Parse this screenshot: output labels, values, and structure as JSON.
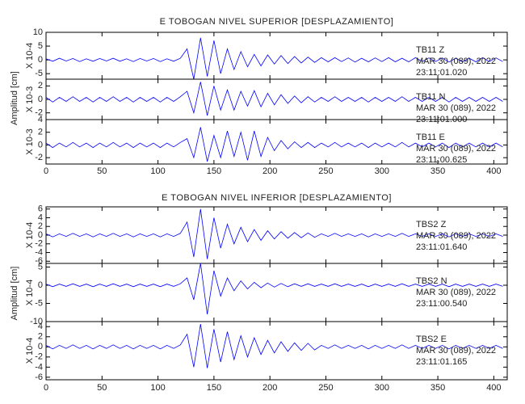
{
  "chart_data": [
    {
      "type": "line",
      "title": "E TOBOGAN NIVEL SUPERIOR [DESPLAZAMIENTO]",
      "y_label": "Amplitud [cm]",
      "color": "#0000ff",
      "x": [
        0,
        6,
        12,
        18,
        24,
        30,
        36,
        42,
        48,
        54,
        60,
        66,
        72,
        78,
        84,
        90,
        96,
        102,
        108,
        114,
        120,
        126,
        132,
        138,
        144,
        150,
        156,
        162,
        168,
        174,
        180,
        186,
        192,
        198,
        204,
        210,
        216,
        222,
        228,
        234,
        240,
        246,
        252,
        258,
        264,
        270,
        276,
        282,
        288,
        294,
        300,
        306,
        312,
        318,
        324,
        330,
        336,
        342,
        348,
        354,
        360,
        366,
        372,
        378,
        384,
        390,
        396,
        402,
        408
      ],
      "xlim": [
        0,
        412
      ],
      "xticks": [
        0,
        50,
        100,
        150,
        200,
        250,
        300,
        350,
        400
      ],
      "series": [
        {
          "station": "TB11   Z",
          "date": "MAR 30 (089), 2022",
          "time": "23:11:01.020",
          "scale": "X 10-4",
          "ylim": [
            -7,
            10
          ],
          "yticks": [
            -5,
            0,
            5,
            10
          ],
          "values": [
            0.4,
            -0.5,
            0.6,
            -0.4,
            0.5,
            -0.6,
            0.4,
            -0.5,
            0.5,
            -0.4,
            0.6,
            -0.5,
            0.4,
            -0.6,
            0.5,
            -0.4,
            0.5,
            -0.6,
            0.4,
            -0.5,
            0.6,
            4,
            -7,
            8,
            -6,
            7,
            -5,
            4,
            -3.5,
            3,
            -2.5,
            2,
            -2.2,
            1.8,
            -1.5,
            1.6,
            -1.3,
            1.2,
            -1.1,
            1,
            -0.9,
            0.8,
            -0.7,
            0.8,
            -0.6,
            0.7,
            -0.8,
            0.6,
            -0.7,
            0.7,
            -0.6,
            0.8,
            -0.7,
            0.6,
            -0.7,
            0.8,
            -0.6,
            0.7,
            -0.6,
            0.7,
            -0.8,
            0.6,
            -0.7,
            0.6,
            -0.7,
            0.8,
            -0.6,
            0.7,
            -0.6
          ]
        },
        {
          "station": "TB11   N",
          "date": "MAR 30 (089), 2022",
          "time": "23:11:01.000",
          "scale": "X 10-3",
          "ylim": [
            -3,
            3
          ],
          "yticks": [
            -2,
            0,
            2
          ],
          "values": [
            0.3,
            -0.4,
            0.3,
            -0.3,
            0.4,
            -0.3,
            0.3,
            -0.4,
            0.3,
            -0.3,
            0.4,
            -0.3,
            0.3,
            -0.4,
            0.3,
            -0.3,
            0.3,
            -0.4,
            0.3,
            -0.3,
            0.4,
            1.2,
            -2,
            2.6,
            -2.4,
            2,
            -1.6,
            1.4,
            -1.6,
            1.2,
            -1,
            1.3,
            -1.1,
            0.9,
            -0.8,
            0.7,
            -0.6,
            0.5,
            -0.5,
            0.4,
            -0.4,
            0.3,
            -0.3,
            0.4,
            -0.3,
            0.3,
            -0.3,
            0.3,
            -0.4,
            0.3,
            -0.3,
            0.3,
            -0.3,
            0.4,
            -0.3,
            0.3,
            -0.3,
            0.3,
            -0.3,
            0.3,
            -0.4,
            0.3,
            -0.3,
            0.3,
            -0.3,
            0.3,
            -0.3,
            0.3,
            -0.3
          ]
        },
        {
          "station": "TB11   E",
          "date": "MAR 30 (089), 2022",
          "time": "23:11:00.625",
          "scale": "X 10-3",
          "ylim": [
            -3,
            4
          ],
          "yticks": [
            -2,
            0,
            2,
            4
          ],
          "values": [
            0.3,
            -0.4,
            0.3,
            -0.3,
            0.4,
            -0.3,
            0.3,
            -0.4,
            0.3,
            -0.3,
            0.4,
            -0.3,
            0.3,
            -0.4,
            0.3,
            -0.3,
            0.3,
            -0.4,
            0.3,
            -0.3,
            0.4,
            1,
            -2,
            2.8,
            -2.6,
            1.5,
            -2,
            2.2,
            -1.8,
            2,
            -2.4,
            2.2,
            -1.8,
            1.2,
            -0.9,
            0.7,
            -0.6,
            0.5,
            -0.4,
            0.4,
            -0.4,
            0.3,
            -0.3,
            0.4,
            -0.3,
            0.3,
            -0.3,
            0.3,
            -0.4,
            0.3,
            -0.3,
            0.3,
            -0.3,
            0.4,
            -0.3,
            0.3,
            -0.3,
            0.3,
            -0.3,
            0.3,
            -0.4,
            0.3,
            -0.3,
            0.3,
            -0.3,
            0.3,
            -0.3,
            0.3,
            -0.3
          ]
        }
      ]
    },
    {
      "type": "line",
      "title": "E TOBOGAN NIVEL INFERIOR [DESPLAZAMIENTO]",
      "y_label": "Amplitud [cm]",
      "color": "#0000ff",
      "x": [
        0,
        6,
        12,
        18,
        24,
        30,
        36,
        42,
        48,
        54,
        60,
        66,
        72,
        78,
        84,
        90,
        96,
        102,
        108,
        114,
        120,
        126,
        132,
        138,
        144,
        150,
        156,
        162,
        168,
        174,
        180,
        186,
        192,
        198,
        204,
        210,
        216,
        222,
        228,
        234,
        240,
        246,
        252,
        258,
        264,
        270,
        276,
        282,
        288,
        294,
        300,
        306,
        312,
        318,
        324,
        330,
        336,
        342,
        348,
        354,
        360,
        366,
        372,
        378,
        384,
        390,
        396,
        402,
        408
      ],
      "xlim": [
        0,
        412
      ],
      "xticks": [
        0,
        50,
        100,
        150,
        200,
        250,
        300,
        350,
        400
      ],
      "series": [
        {
          "station": "TBS2   Z",
          "date": "MAR 30 (089), 2022",
          "time": "23:11:01.640",
          "scale": "X 10-4",
          "ylim": [
            -6.5,
            6.5
          ],
          "yticks": [
            -6,
            -4,
            -2,
            0,
            2,
            4,
            6
          ],
          "values": [
            0.3,
            -0.4,
            0.3,
            -0.3,
            0.4,
            -0.3,
            0.3,
            -0.4,
            0.3,
            -0.3,
            0.4,
            -0.3,
            0.3,
            -0.4,
            0.3,
            -0.3,
            0.3,
            -0.4,
            0.3,
            -0.3,
            0.4,
            3,
            -5,
            6,
            -5.5,
            4,
            -3,
            2.5,
            -2,
            1.8,
            -1.5,
            1.3,
            -1.2,
            1,
            -0.9,
            0.8,
            -0.7,
            0.6,
            -0.6,
            0.5,
            -0.5,
            0.3,
            -0.3,
            0.4,
            -0.3,
            0.3,
            -0.3,
            0.3,
            -0.4,
            0.3,
            -0.3,
            0.3,
            -0.3,
            0.4,
            -0.3,
            0.3,
            -0.3,
            0.3,
            -0.3,
            0.3,
            -0.4,
            0.3,
            -0.3,
            0.3,
            -0.3,
            0.3,
            -0.3,
            0.3,
            -0.3
          ]
        },
        {
          "station": "TBS2   N",
          "date": "MAR 30 (089), 2022",
          "time": "23:11:00.540",
          "scale": "X 10-4",
          "ylim": [
            -10,
            6
          ],
          "yticks": [
            -10,
            -5,
            0,
            5
          ],
          "values": [
            0.3,
            -0.4,
            0.3,
            -0.3,
            0.4,
            -0.3,
            0.3,
            -0.4,
            0.3,
            -0.3,
            0.4,
            -0.3,
            0.3,
            -0.4,
            0.3,
            -0.3,
            0.3,
            -0.4,
            0.3,
            -0.3,
            0.4,
            2,
            -4,
            6,
            -8,
            4,
            -3,
            2,
            -1.5,
            1.2,
            -1,
            0.8,
            -0.7,
            0.6,
            -0.5,
            0.5,
            -0.4,
            0.4,
            -0.3,
            0.4,
            -0.3,
            0.3,
            -0.3,
            0.4,
            -0.3,
            0.3,
            -0.3,
            0.3,
            -0.4,
            0.3,
            -0.3,
            0.3,
            -0.3,
            0.4,
            -0.3,
            0.3,
            -0.3,
            0.3,
            -0.3,
            0.3,
            -0.4,
            0.3,
            -0.3,
            0.3,
            -0.3,
            0.3,
            -0.3,
            0.3,
            -0.3
          ]
        },
        {
          "station": "TBS2   E",
          "date": "MAR 30 (089), 2022",
          "time": "23:11:01.165",
          "scale": "X 10-4",
          "ylim": [
            -6.5,
            5
          ],
          "yticks": [
            -6,
            -4,
            -2,
            0,
            2,
            4
          ],
          "values": [
            0.3,
            -0.4,
            0.3,
            -0.3,
            0.4,
            -0.3,
            0.3,
            -0.4,
            0.3,
            -0.3,
            0.4,
            -0.3,
            0.3,
            -0.4,
            0.3,
            -0.3,
            0.3,
            -0.4,
            0.3,
            -0.3,
            0.4,
            2.5,
            -4,
            4.5,
            -4.2,
            3.5,
            -3,
            3,
            -2.5,
            2.2,
            -2,
            1.8,
            -1.5,
            1.3,
            -1.2,
            1,
            -0.9,
            0.8,
            -0.7,
            0.7,
            -0.6,
            0.3,
            -0.3,
            0.4,
            -0.3,
            0.3,
            -0.3,
            0.3,
            -0.4,
            0.3,
            -0.3,
            0.3,
            -0.3,
            0.4,
            -0.3,
            0.3,
            -0.3,
            0.3,
            -0.3,
            0.3,
            -0.4,
            0.3,
            -0.3,
            0.3,
            -0.3,
            0.3,
            -0.3,
            0.3,
            -0.3
          ]
        }
      ]
    }
  ]
}
